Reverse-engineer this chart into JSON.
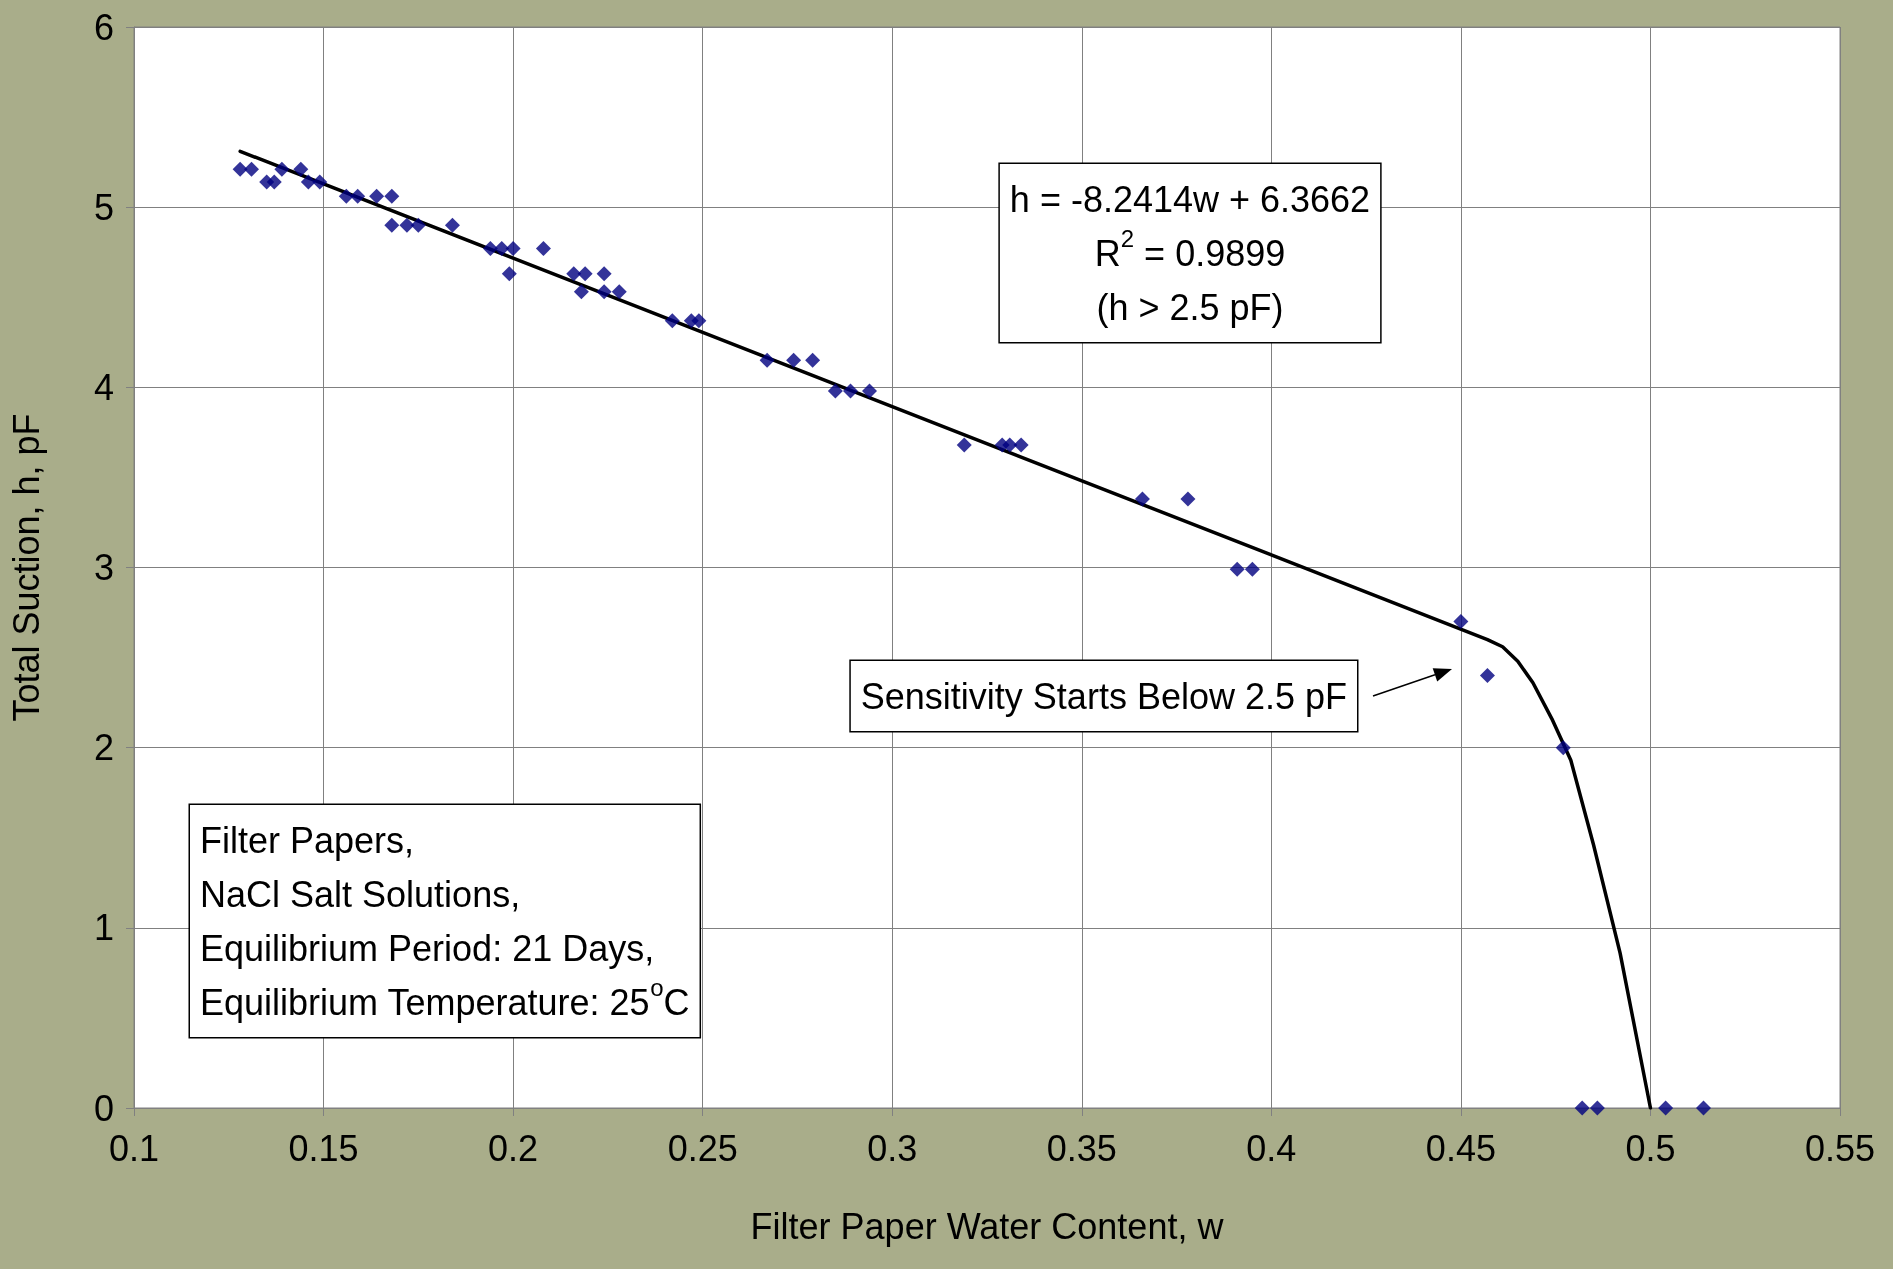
{
  "chart_data": {
    "type": "scatter",
    "xlabel": "Filter Paper Water Content, w",
    "ylabel": "Total Suction, h, pF",
    "xlim": [
      0.1,
      0.55
    ],
    "xticks": [
      0.1,
      0.15,
      0.2,
      0.25,
      0.3,
      0.35,
      0.4,
      0.45,
      0.5,
      0.55
    ],
    "ylim": [
      0,
      6
    ],
    "yticks": [
      0,
      1,
      2,
      3,
      4,
      5,
      6
    ],
    "grid": true,
    "marker": "diamond",
    "series": [
      {
        "color": "#000080",
        "x": [
          0.128,
          0.131,
          0.135,
          0.137,
          0.139,
          0.144,
          0.146,
          0.149,
          0.156,
          0.159,
          0.164,
          0.168,
          0.168,
          0.172,
          0.175,
          0.184,
          0.194,
          0.197,
          0.2,
          0.199,
          0.208,
          0.216,
          0.219,
          0.218,
          0.224,
          0.224,
          0.228,
          0.242,
          0.247,
          0.249,
          0.267,
          0.274,
          0.279,
          0.285,
          0.289,
          0.294,
          0.319,
          0.329,
          0.331,
          0.334,
          0.366,
          0.378,
          0.391,
          0.395,
          0.45,
          0.457,
          0.477,
          0.482,
          0.486,
          0.504,
          0.514
        ],
        "values": [
          5.21,
          5.21,
          5.14,
          5.14,
          5.21,
          5.21,
          5.14,
          5.14,
          5.06,
          5.06,
          5.06,
          5.06,
          4.9,
          4.9,
          4.9,
          4.9,
          4.77,
          4.77,
          4.77,
          4.63,
          4.77,
          4.63,
          4.63,
          4.53,
          4.63,
          4.53,
          4.53,
          4.37,
          4.37,
          4.37,
          4.15,
          4.15,
          4.15,
          3.98,
          3.98,
          3.98,
          3.68,
          3.68,
          3.68,
          3.68,
          3.38,
          3.38,
          2.99,
          2.99,
          2.7,
          2.4,
          2.0,
          0,
          0,
          0,
          0
        ]
      },
      {
        "type": "line",
        "color": "#000000",
        "marker": "none",
        "line_style": "solid",
        "x": [
          0.128,
          0.457,
          0.461,
          0.465,
          0.469,
          0.474,
          0.479,
          0.485,
          0.492,
          0.5
        ],
        "values": [
          5.31,
          2.6,
          2.56,
          2.48,
          2.36,
          2.16,
          1.93,
          1.46,
          0.86,
          0
        ]
      }
    ],
    "annotations": [
      "h = -8.2414w + 6.3662\nR$^{2}$ = 0.9899\n(h > 2.5 pF)",
      "Filter Papers,\nNaCl Salt Solutions,\nEquilibrium Period: 21 Days,\nEquilibrium Temperature: 25$^{o}$C",
      "Sensitivity Starts Below 2.5 pF"
    ]
  }
}
